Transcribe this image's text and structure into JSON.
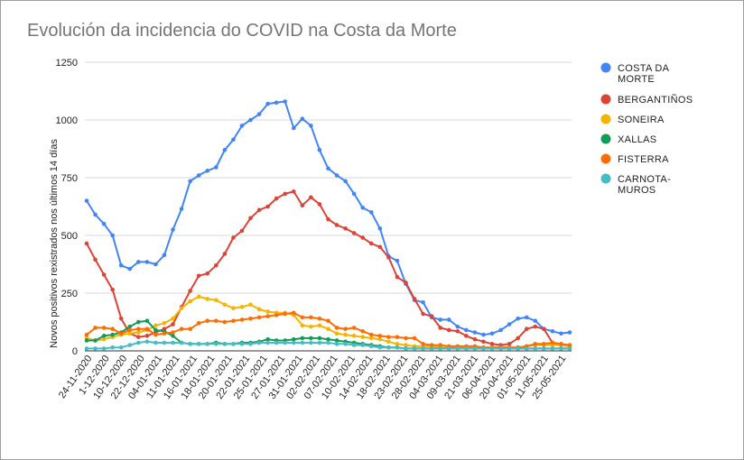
{
  "chart_data": {
    "type": "line",
    "title": "Evolución da incidencia do COVID na Costa da Morte",
    "xlabel": "",
    "ylabel": "Novos positivos rexistrados nos últimos 14 días",
    "ylim": [
      0,
      1250
    ],
    "yticks": [
      "0",
      "250",
      "500",
      "750",
      "1000",
      "1250"
    ],
    "grid": true,
    "legend_position": "right",
    "x_tick_labels": [
      "24-11-2020",
      "1-12-2020",
      "10-12-2020",
      "22-12-2020",
      "04-01-2021",
      "11-01-2021",
      "16-01-2021",
      "18-01-2021",
      "20-01-2021",
      "22-01-2021",
      "25-01-2021",
      "27-01-2021",
      "31-01-2021",
      "02-02-2021",
      "07-02-2021",
      "10-02-2021",
      "14-02-2021",
      "18-02-2021",
      "23-02-2021",
      "28-02-2021",
      "04-03-2021",
      "09-03-2021",
      "21-03-2021",
      "06-04-2021",
      "20-04-2021",
      "01-05-2021",
      "11-05-2021",
      "25-05-2021"
    ],
    "series": [
      {
        "name": "COSTA DA MORTE",
        "legend_lines": [
          "COSTA DA",
          "MORTE"
        ],
        "color": "#4285f4",
        "values": [
          650,
          590,
          550,
          500,
          370,
          355,
          385,
          385,
          375,
          415,
          525,
          615,
          735,
          760,
          780,
          795,
          870,
          915,
          975,
          1000,
          1025,
          1070,
          1075,
          1080,
          965,
          1005,
          975,
          870,
          790,
          760,
          735,
          680,
          620,
          600,
          530,
          410,
          390,
          290,
          220,
          210,
          145,
          135,
          135,
          105,
          90,
          80,
          70,
          75,
          90,
          115,
          140,
          145,
          130,
          95,
          85,
          75,
          80
        ]
      },
      {
        "name": "BERGANTIÑOS",
        "legend_lines": [
          "BERGANTIÑOS"
        ],
        "color": "#db4437",
        "values": [
          465,
          395,
          330,
          265,
          140,
          75,
          60,
          65,
          80,
          95,
          115,
          190,
          260,
          325,
          335,
          370,
          420,
          490,
          520,
          575,
          610,
          625,
          660,
          680,
          690,
          630,
          665,
          635,
          570,
          545,
          530,
          510,
          490,
          465,
          450,
          405,
          320,
          295,
          225,
          160,
          150,
          100,
          90,
          85,
          65,
          50,
          40,
          30,
          25,
          30,
          55,
          95,
          105,
          95,
          35,
          25,
          20
        ]
      },
      {
        "name": "SONEIRA",
        "legend_lines": [
          "SONEIRA"
        ],
        "color": "#f4b400",
        "values": [
          55,
          45,
          50,
          60,
          70,
          75,
          80,
          90,
          110,
          120,
          140,
          185,
          215,
          235,
          225,
          220,
          200,
          185,
          190,
          200,
          180,
          170,
          165,
          165,
          155,
          110,
          105,
          110,
          95,
          75,
          70,
          65,
          60,
          55,
          50,
          40,
          30,
          25,
          20,
          20,
          20,
          15,
          15,
          15,
          15,
          15,
          15,
          15,
          15,
          15,
          15,
          20,
          25,
          25,
          25,
          25,
          20
        ]
      },
      {
        "name": "XALLAS",
        "legend_lines": [
          "XALLAS"
        ],
        "color": "#0f9d58",
        "values": [
          45,
          45,
          65,
          70,
          80,
          105,
          125,
          130,
          90,
          85,
          65,
          35,
          30,
          30,
          30,
          35,
          30,
          30,
          35,
          35,
          40,
          50,
          45,
          45,
          50,
          55,
          55,
          55,
          50,
          45,
          40,
          35,
          30,
          25,
          20,
          15,
          15,
          10,
          10,
          10,
          10,
          10,
          10,
          10,
          10,
          10,
          10,
          10,
          10,
          10,
          10,
          10,
          10,
          10,
          10,
          10,
          10
        ]
      },
      {
        "name": "FISTERRA",
        "legend_lines": [
          "FISTERRA"
        ],
        "color": "#ff6d00",
        "values": [
          70,
          100,
          100,
          95,
          75,
          90,
          95,
          95,
          70,
          75,
          80,
          95,
          95,
          120,
          130,
          130,
          125,
          130,
          135,
          140,
          145,
          150,
          155,
          160,
          165,
          145,
          145,
          140,
          130,
          100,
          95,
          100,
          85,
          70,
          65,
          60,
          60,
          55,
          55,
          30,
          25,
          25,
          20,
          20,
          20,
          20,
          15,
          15,
          15,
          15,
          15,
          20,
          30,
          30,
          35,
          30,
          25
        ]
      },
      {
        "name": "CARNOTA-MUROS",
        "legend_lines": [
          "CARNOTA-",
          "MUROS"
        ],
        "color": "#46bdc6",
        "values": [
          10,
          10,
          10,
          15,
          15,
          25,
          35,
          40,
          35,
          35,
          35,
          35,
          30,
          30,
          30,
          30,
          30,
          30,
          30,
          30,
          35,
          35,
          35,
          35,
          35,
          35,
          35,
          35,
          35,
          30,
          30,
          25,
          25,
          20,
          15,
          15,
          15,
          10,
          10,
          10,
          10,
          10,
          10,
          10,
          10,
          10,
          10,
          10,
          10,
          10,
          10,
          10,
          10,
          10,
          10,
          10,
          10
        ]
      }
    ]
  }
}
